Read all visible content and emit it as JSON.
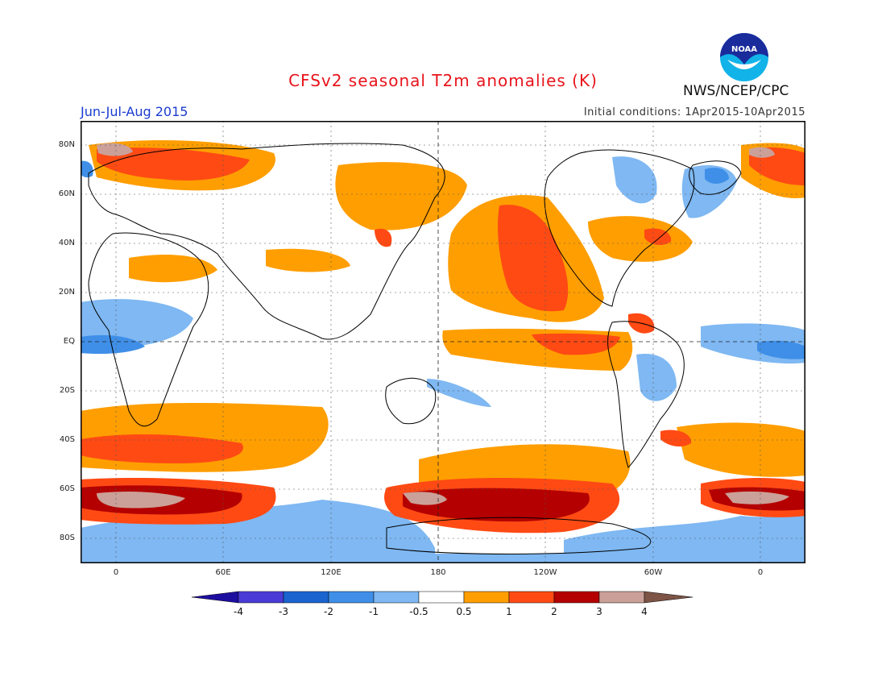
{
  "title": "CFSv2 seasonal T2m anomalies (K)",
  "period": "Jun-Jul-Aug 2015",
  "initial_conditions": "Initial conditions: 1Apr2015-10Apr2015",
  "agency": "NWS/NCEP/CPC",
  "logo_text": "NOAA",
  "lat_labels": [
    "80N",
    "60N",
    "40N",
    "20N",
    "EQ",
    "20S",
    "40S",
    "60S",
    "80S"
  ],
  "lon_labels": [
    "0",
    "60E",
    "120E",
    "180",
    "120W",
    "60W",
    "0"
  ],
  "colorbar": {
    "labels": [
      "-4",
      "-3",
      "-2",
      "-1",
      "-0.5",
      "0.5",
      "1",
      "2",
      "3",
      "4"
    ],
    "colors": [
      "#1e0ea0",
      "#4a3bd6",
      "#1b64d0",
      "#3f8fe8",
      "#7fb8f2",
      "#ffffff",
      "#ff9e00",
      "#ff4a14",
      "#b40000",
      "#cba098",
      "#7d5446"
    ]
  }
}
